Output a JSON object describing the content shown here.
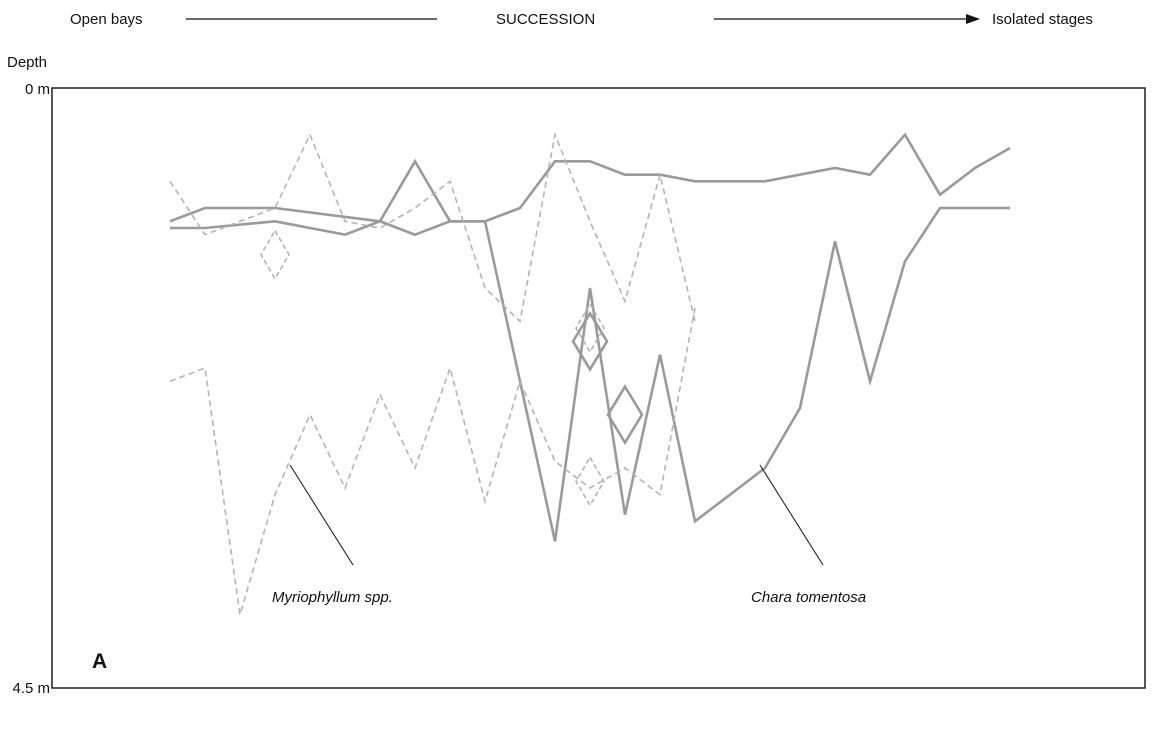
{
  "succession": {
    "left_label": "Open bays",
    "center_label": "SUCCESSION",
    "right_label": "Isolated stages"
  },
  "panel_letter": "A",
  "chart_data": {
    "type": "line",
    "title": "",
    "xlabel": "",
    "ylabel": "Depth",
    "y_tick_labels": [
      "0 m",
      "4.5 m"
    ],
    "ylim": [
      0,
      4.5
    ],
    "y_inverted": true,
    "grid": false,
    "legend": "none",
    "x": [
      1,
      2,
      3,
      4,
      5,
      6,
      7,
      8,
      9,
      10,
      11,
      12,
      13,
      14,
      15,
      16,
      17,
      18,
      19,
      20,
      21,
      22,
      23,
      24,
      25
    ],
    "series": [
      {
        "name": "Chara tomentosa",
        "style": "solid",
        "color": "#9a9a9a",
        "upper": {
          "x": [
            1,
            2,
            4,
            7,
            8,
            9,
            10,
            11,
            12,
            13,
            14,
            15,
            16,
            18,
            20,
            21,
            22,
            23,
            24,
            25
          ],
          "depth": [
            1.0,
            0.9,
            0.9,
            1.0,
            0.55,
            1.0,
            1.0,
            0.9,
            0.55,
            0.55,
            0.65,
            0.65,
            0.7,
            0.7,
            0.6,
            0.65,
            0.35,
            0.8,
            0.6,
            0.45
          ]
        },
        "lower": {
          "x": [
            1,
            2,
            4,
            6,
            7,
            8,
            9,
            10,
            12,
            13,
            14,
            15,
            16,
            17,
            18,
            19,
            20,
            21,
            22,
            23,
            24,
            25
          ],
          "depth": [
            1.05,
            1.05,
            1.0,
            1.1,
            1.0,
            1.1,
            1.0,
            1.0,
            3.4,
            1.5,
            3.2,
            2.0,
            3.25,
            3.05,
            2.85,
            2.4,
            1.15,
            2.2,
            1.3,
            0.9,
            0.9,
            0.9
          ]
        },
        "markers": [
          {
            "x": 13,
            "depth": 1.9
          },
          {
            "x": 14,
            "depth": 2.45
          }
        ]
      },
      {
        "name": "Myriophyllum spp.",
        "style": "dashed",
        "color": "#b4b4b4",
        "upper": {
          "x": [
            1,
            2,
            4,
            5,
            6,
            7,
            8,
            9,
            10,
            11,
            12,
            13,
            14,
            15,
            16
          ],
          "depth": [
            0.7,
            1.1,
            0.9,
            0.35,
            1.0,
            1.05,
            0.9,
            0.7,
            1.5,
            1.75,
            0.35,
            1.0,
            1.6,
            0.65,
            1.75
          ]
        },
        "lower": {
          "x": [
            1,
            2,
            3,
            4,
            5,
            6,
            7,
            8,
            9,
            10,
            11,
            12,
            13,
            14,
            15,
            16
          ],
          "depth": [
            2.2,
            2.1,
            3.95,
            3.05,
            2.45,
            3.0,
            2.3,
            2.85,
            2.1,
            3.1,
            2.2,
            2.8,
            3.0,
            2.85,
            3.05,
            1.65
          ]
        },
        "markers": [
          {
            "x": 4,
            "depth": 1.25
          },
          {
            "x": 13,
            "depth": 1.8
          },
          {
            "x": 13,
            "depth": 2.95
          }
        ]
      }
    ],
    "annotations": [
      {
        "text": "Myriophyllum spp.",
        "points_to_series": "Myriophyllum spp."
      },
      {
        "text": "Chara tomentosa",
        "points_to_series": "Chara tomentosa"
      }
    ]
  }
}
